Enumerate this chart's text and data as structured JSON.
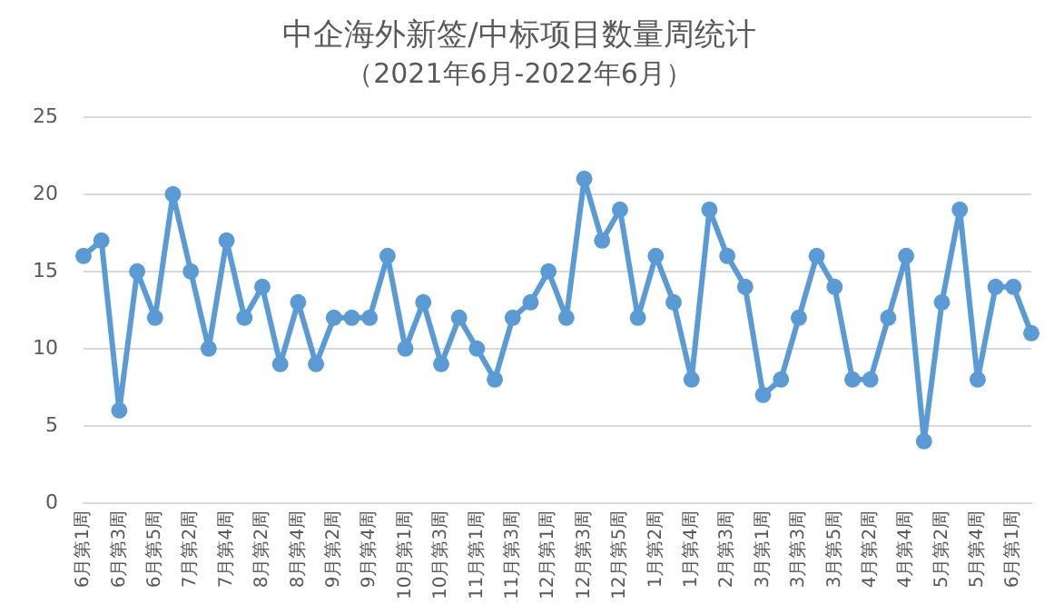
{
  "chart_data": {
    "type": "line",
    "title": "中企海外新签/中标项目数量周统计",
    "subtitle": "（2021年6月-2022年6月）",
    "categories": [
      "6月第1周",
      null,
      "6月第3周",
      null,
      "6月第5周",
      null,
      "7月第2周",
      null,
      "7月第4周",
      null,
      "8月第2周",
      null,
      "8月第4周",
      null,
      "9月第2周",
      null,
      "9月第4周",
      null,
      "10月第1周",
      null,
      "10月第3周",
      null,
      "11月第1周",
      null,
      "11月第3周",
      null,
      "12月第1周",
      null,
      "12月第3周",
      null,
      "12月第5周",
      null,
      "1月第2周",
      null,
      "1月第4周",
      null,
      "2月第3周",
      null,
      "3月第1周",
      null,
      "3月第3周",
      null,
      "3月第5周",
      null,
      "4月第2周",
      null,
      "4月第4周",
      null,
      "5月第2周",
      null,
      "5月第4周",
      null,
      "6月第1周",
      null
    ],
    "series": [
      {
        "color": "#5b9bd5",
        "values": [
          16,
          17,
          6,
          15,
          12,
          20,
          15,
          10,
          17,
          12,
          14,
          9,
          13,
          9,
          12,
          12,
          12,
          16,
          10,
          13,
          9,
          12,
          10,
          8,
          12,
          13,
          15,
          12,
          21,
          17,
          19,
          12,
          16,
          13,
          8,
          19,
          16,
          14,
          7,
          8,
          12,
          16,
          14,
          8,
          8,
          12,
          16,
          4,
          13,
          19,
          8,
          14,
          14,
          11
        ]
      }
    ],
    "ylim": [
      0,
      25
    ],
    "yticks": [
      0,
      5,
      10,
      15,
      20,
      25
    ],
    "grid": "y",
    "legend": false,
    "marker": "circle",
    "line_style": "solid"
  }
}
